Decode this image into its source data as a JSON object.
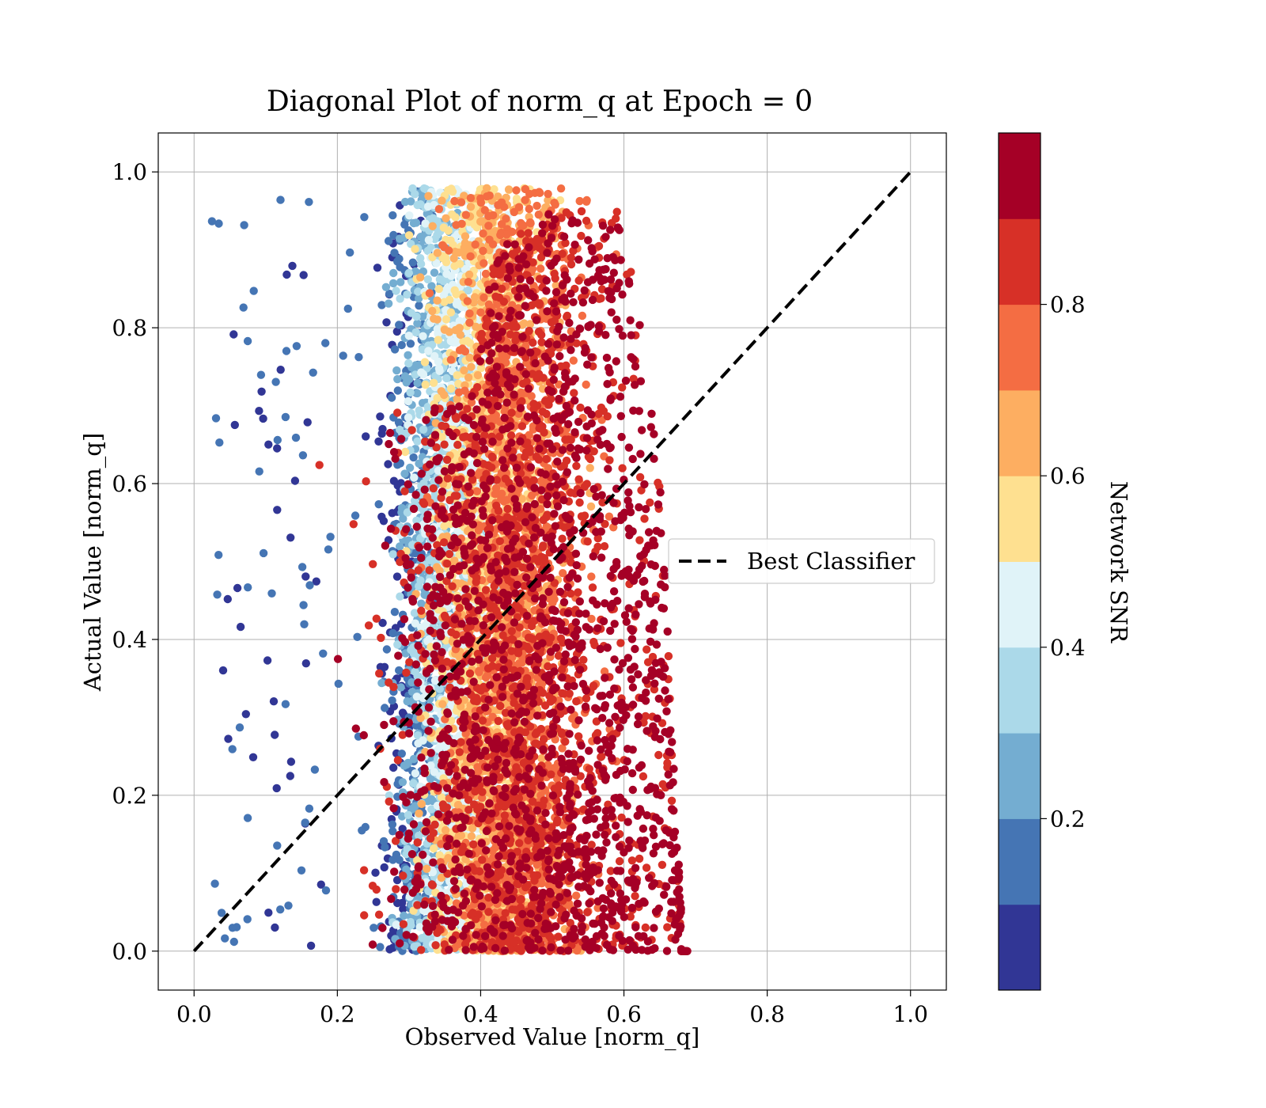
{
  "chart_data": {
    "type": "scatter",
    "title": "Diagonal Plot of norm_q at Epoch = 0",
    "xlabel": "Observed Value [norm_q]",
    "ylabel": "Actual Value [norm_q]",
    "xlim": [
      -0.05,
      1.05
    ],
    "ylim": [
      -0.05,
      1.05
    ],
    "xticks": [
      "0.0",
      "0.2",
      "0.4",
      "0.6",
      "0.8",
      "1.0"
    ],
    "yticks": [
      "0.0",
      "0.2",
      "0.4",
      "0.6",
      "0.8",
      "1.0"
    ],
    "grid": true,
    "reference_line": {
      "name": "Best Classifier",
      "x": [
        0.0,
        1.0
      ],
      "y": [
        0.0,
        1.0
      ],
      "style": "dashed",
      "color": "#000000"
    },
    "legend": {
      "placement": "center-right",
      "entries": [
        "Best Classifier"
      ]
    },
    "point_cloud": {
      "approx_points": 20000,
      "x_range_by_snr": [
        {
          "snr": 0.05,
          "x_typical": [
            0.03,
            0.3
          ]
        },
        {
          "snr": 0.3,
          "x_typical": [
            0.22,
            0.33
          ]
        },
        {
          "snr": 0.55,
          "x_typical": [
            0.3,
            0.38
          ]
        },
        {
          "snr": 0.8,
          "x_typical": [
            0.33,
            0.45
          ]
        },
        {
          "snr": 0.95,
          "x_typical": [
            0.35,
            0.68
          ]
        }
      ],
      "y_range": [
        0.0,
        0.99
      ],
      "high_snr_upper_y": [
        [
          0.38,
          0.7
        ],
        [
          0.42,
          0.9
        ],
        [
          0.5,
          0.95
        ],
        [
          0.6,
          0.95
        ],
        [
          0.65,
          0.62
        ],
        [
          0.68,
          0.05
        ]
      ]
    },
    "colorbar": {
      "label": "Network SNR",
      "colormap": "RdYlBu_r",
      "range": [
        0.0,
        1.0
      ],
      "bins": 10,
      "ticks": [
        "0.2",
        "0.4",
        "0.6",
        "0.8"
      ],
      "colors": [
        "#313695",
        "#4575b4",
        "#74add1",
        "#abd9e9",
        "#e0f3f8",
        "#fee090",
        "#fdae61",
        "#f46d43",
        "#d73027",
        "#a50026"
      ]
    }
  }
}
